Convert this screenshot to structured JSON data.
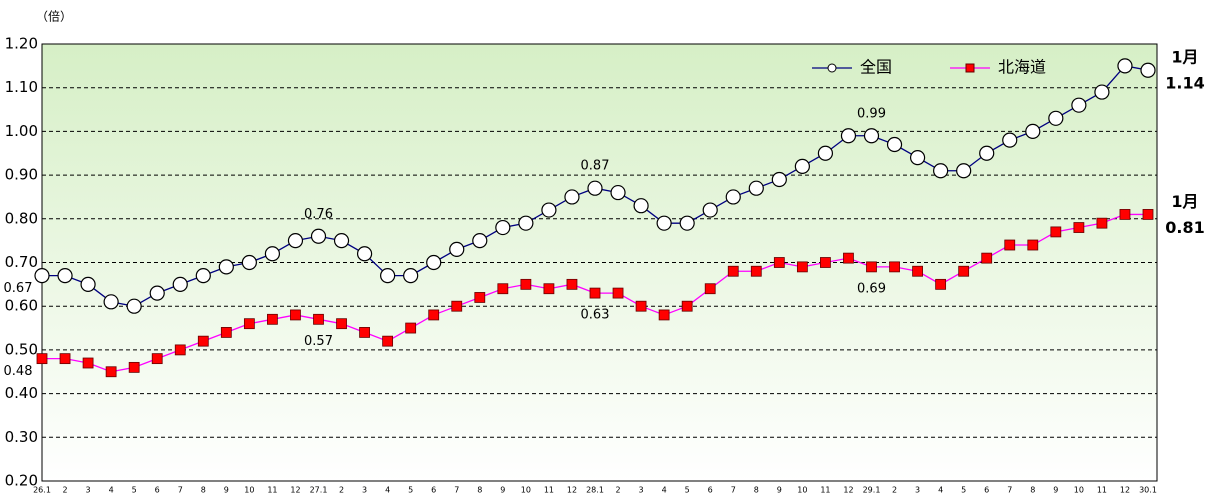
{
  "chart_data": {
    "type": "line",
    "unit_label": "（倍）",
    "categories": [
      "26.1",
      "2",
      "3",
      "4",
      "5",
      "6",
      "7",
      "8",
      "9",
      "10",
      "11",
      "12",
      "27.1",
      "2",
      "3",
      "4",
      "5",
      "6",
      "7",
      "8",
      "9",
      "10",
      "11",
      "12",
      "28.1",
      "2",
      "3",
      "4",
      "5",
      "6",
      "7",
      "8",
      "9",
      "10",
      "11",
      "12",
      "29.1",
      "2",
      "3",
      "4",
      "5",
      "6",
      "7",
      "8",
      "9",
      "10",
      "11",
      "12",
      "30.1"
    ],
    "series": [
      {
        "name": "全国",
        "color": "#000080",
        "marker": "circle",
        "marker_color": "#ffffff",
        "end_label": "1月",
        "values": [
          0.67,
          0.67,
          0.65,
          0.61,
          0.6,
          0.63,
          0.65,
          0.67,
          0.69,
          0.7,
          0.72,
          0.75,
          0.76,
          0.75,
          0.72,
          0.67,
          0.67,
          0.7,
          0.73,
          0.75,
          0.78,
          0.79,
          0.82,
          0.85,
          0.87,
          0.86,
          0.83,
          0.79,
          0.79,
          0.82,
          0.85,
          0.87,
          0.89,
          0.92,
          0.95,
          0.99,
          0.99,
          0.97,
          0.94,
          0.91,
          0.91,
          0.95,
          0.98,
          1.0,
          1.03,
          1.06,
          1.09,
          1.15,
          1.14
        ],
        "value_labels": [
          "0.67",
          null,
          null,
          null,
          null,
          null,
          null,
          null,
          null,
          null,
          null,
          null,
          "0.76",
          null,
          null,
          null,
          null,
          null,
          null,
          null,
          null,
          null,
          null,
          null,
          "0.87",
          null,
          null,
          null,
          null,
          null,
          null,
          null,
          null,
          null,
          null,
          null,
          "0.99",
          null,
          null,
          null,
          null,
          null,
          null,
          null,
          null,
          null,
          null,
          null,
          "1.14"
        ]
      },
      {
        "name": "北海道",
        "color": "#ff00ff",
        "marker": "square",
        "marker_color": "#ff0000",
        "end_label": "1月",
        "values": [
          0.48,
          0.48,
          0.47,
          0.45,
          0.46,
          0.48,
          0.5,
          0.52,
          0.54,
          0.56,
          0.57,
          0.58,
          0.57,
          0.56,
          0.54,
          0.52,
          0.55,
          0.58,
          0.6,
          0.62,
          0.64,
          0.65,
          0.64,
          0.65,
          0.63,
          0.63,
          0.6,
          0.58,
          0.6,
          0.64,
          0.68,
          0.68,
          0.7,
          0.69,
          0.7,
          0.71,
          0.69,
          0.69,
          0.68,
          0.65,
          0.68,
          0.71,
          0.74,
          0.74,
          0.77,
          0.78,
          0.79,
          0.81,
          0.81
        ],
        "value_labels": [
          "0.48",
          null,
          null,
          null,
          null,
          null,
          null,
          null,
          null,
          null,
          null,
          null,
          "0.57",
          null,
          null,
          null,
          null,
          null,
          null,
          null,
          null,
          null,
          null,
          null,
          "0.63",
          null,
          null,
          null,
          null,
          null,
          null,
          null,
          null,
          null,
          null,
          null,
          "0.69",
          null,
          null,
          null,
          null,
          null,
          null,
          null,
          null,
          null,
          null,
          null,
          "0.81"
        ]
      }
    ],
    "ylim": [
      0.2,
      1.2
    ],
    "yticks": [
      {
        "value": 0.2,
        "label": "0.20"
      },
      {
        "value": 0.3,
        "label": "0.30"
      },
      {
        "value": 0.4,
        "label": "0.40"
      },
      {
        "value": 0.5,
        "label": "0.50"
      },
      {
        "value": 0.6,
        "label": "0.60"
      },
      {
        "value": 0.7,
        "label": "0.70"
      },
      {
        "value": 0.8,
        "label": "0.80"
      },
      {
        "value": 0.9,
        "label": "0.90"
      },
      {
        "value": 1.0,
        "label": "1.00"
      },
      {
        "value": 1.1,
        "label": "1.10"
      },
      {
        "value": 1.2,
        "label": "1.20"
      }
    ],
    "grid": true,
    "legend": "top-right"
  }
}
